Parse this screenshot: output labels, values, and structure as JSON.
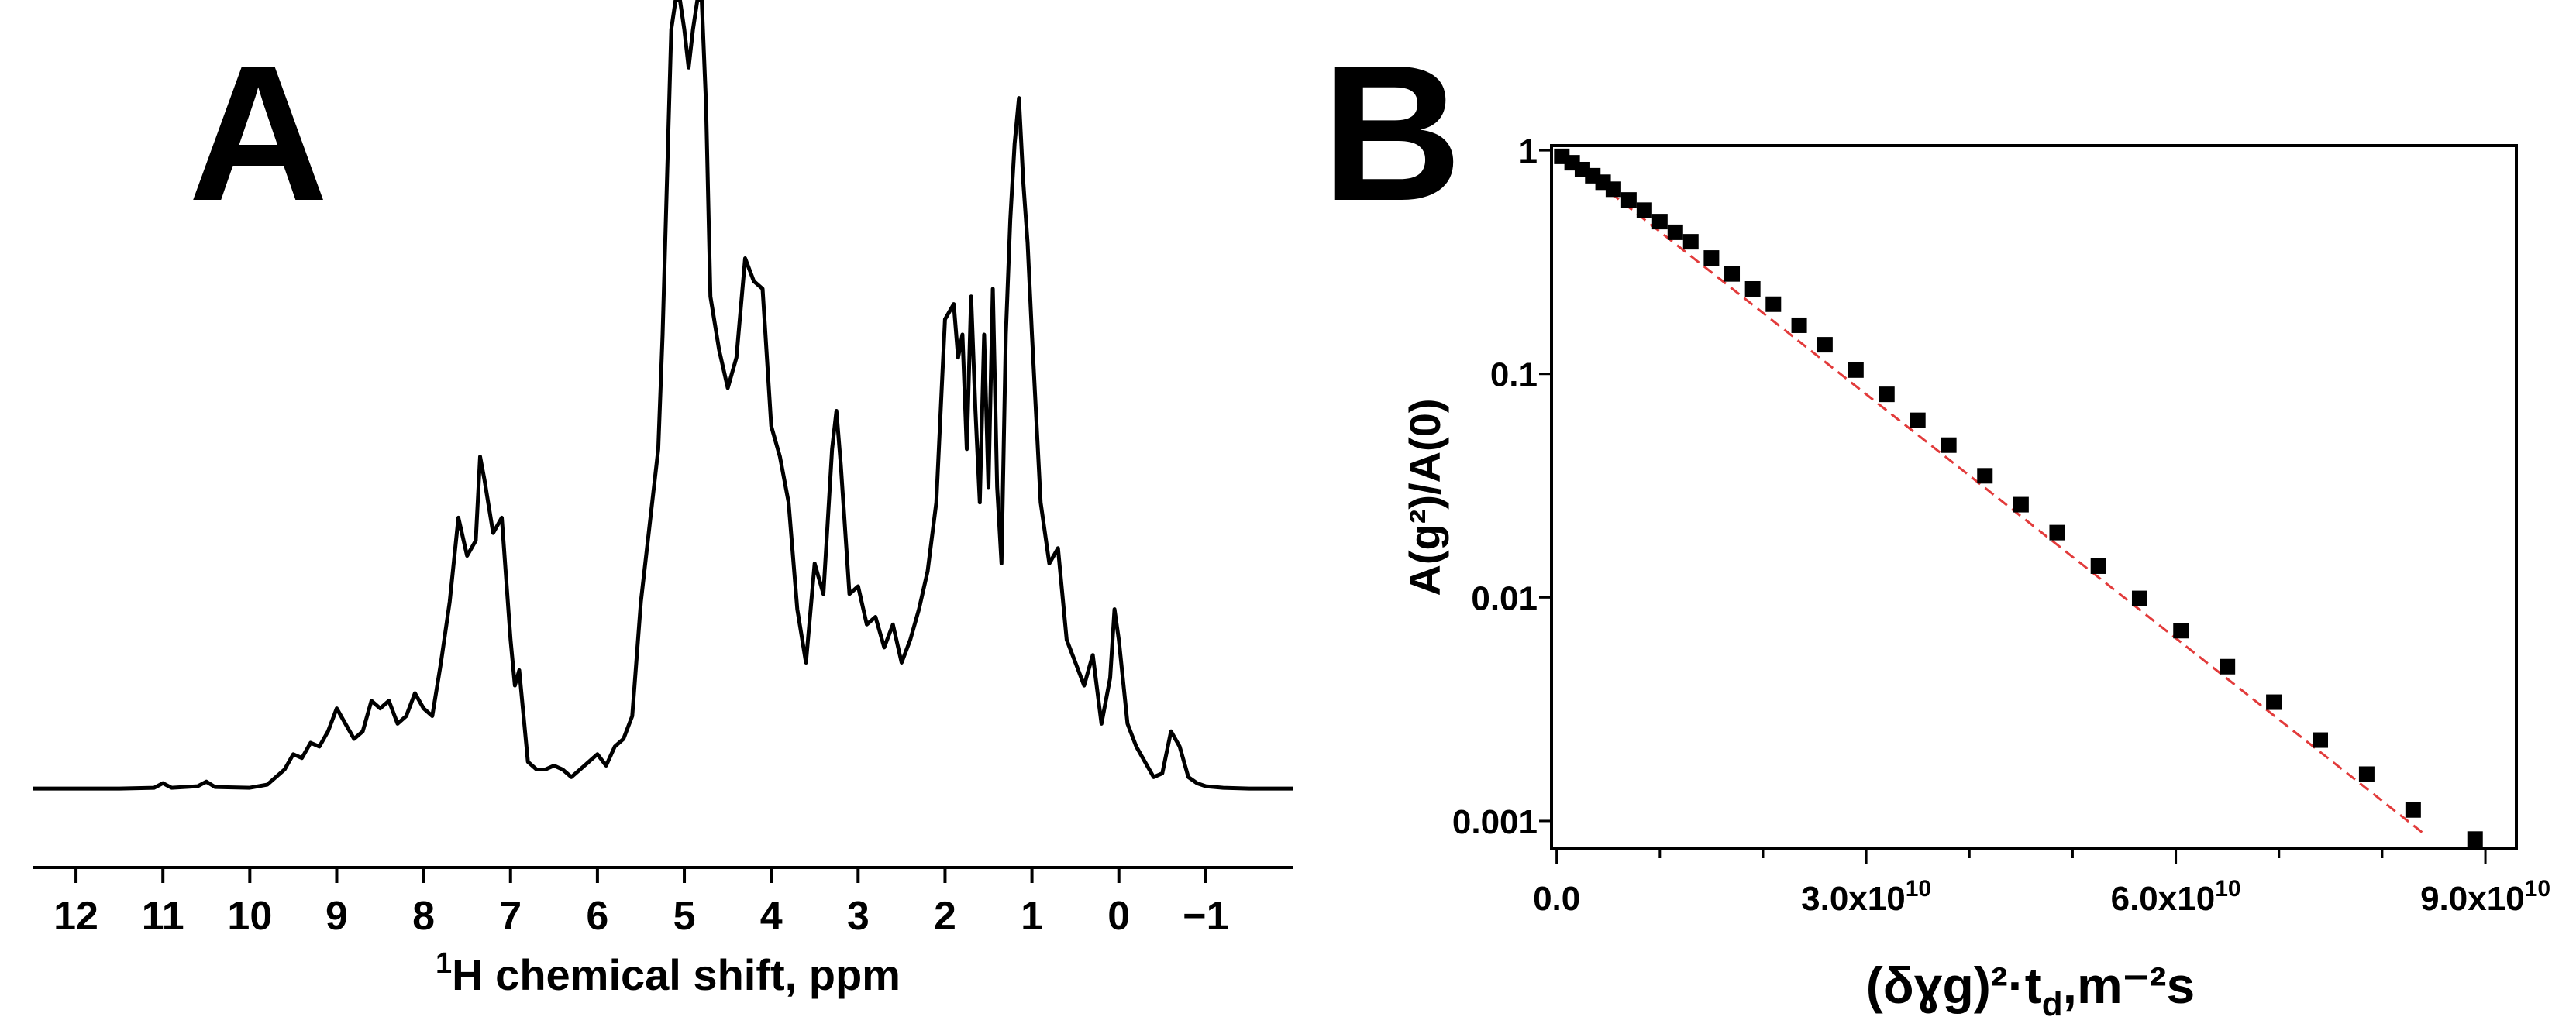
{
  "panels": {
    "A": {
      "letter": "A"
    },
    "B": {
      "letter": "B"
    }
  },
  "chart_data": [
    {
      "panel": "A",
      "type": "line",
      "xlabel_sup": "1",
      "xlabel": "H chemical shift, ppm",
      "xlim": [
        12.5,
        -2.0
      ],
      "x_reversed": true,
      "x_ticks": [
        12,
        11,
        10,
        9,
        8,
        7,
        6,
        5,
        4,
        3,
        2,
        1,
        0,
        -1
      ],
      "x_tick_labels": [
        "12",
        "11",
        "10",
        "9",
        "8",
        "7",
        "6",
        "5",
        "4",
        "3",
        "2",
        "1",
        "0",
        "−1"
      ],
      "ylim": [
        0,
        1.0
      ],
      "y_axis_visible": false,
      "series": [
        {
          "color": "#000000",
          "x": [
            12.5,
            11.5,
            11.1,
            11.0,
            10.9,
            10.6,
            10.5,
            10.4,
            10.0,
            9.8,
            9.6,
            9.5,
            9.4,
            9.3,
            9.2,
            9.1,
            9.0,
            8.9,
            8.8,
            8.7,
            8.6,
            8.5,
            8.4,
            8.3,
            8.2,
            8.1,
            8.0,
            7.9,
            7.8,
            7.7,
            7.6,
            7.5,
            7.4,
            7.35,
            7.3,
            7.2,
            7.1,
            7.0,
            6.95,
            6.9,
            6.8,
            6.7,
            6.6,
            6.5,
            6.4,
            6.3,
            6.2,
            6.1,
            6.0,
            5.9,
            5.8,
            5.7,
            5.6,
            5.5,
            5.4,
            5.3,
            5.25,
            5.2,
            5.15,
            5.1,
            5.05,
            5.0,
            4.95,
            4.9,
            4.85,
            4.8,
            4.75,
            4.7,
            4.6,
            4.5,
            4.4,
            4.3,
            4.2,
            4.1,
            4.0,
            3.9,
            3.8,
            3.7,
            3.6,
            3.5,
            3.4,
            3.3,
            3.25,
            3.2,
            3.1,
            3.0,
            2.9,
            2.8,
            2.7,
            2.6,
            2.5,
            2.4,
            2.3,
            2.2,
            2.1,
            2.0,
            1.9,
            1.85,
            1.8,
            1.75,
            1.7,
            1.65,
            1.6,
            1.55,
            1.5,
            1.45,
            1.4,
            1.35,
            1.3,
            1.25,
            1.2,
            1.15,
            1.1,
            1.05,
            1.0,
            0.9,
            0.8,
            0.7,
            0.6,
            0.5,
            0.4,
            0.3,
            0.2,
            0.1,
            0.05,
            0.0,
            -0.1,
            -0.2,
            -0.3,
            -0.4,
            -0.5,
            -0.6,
            -0.7,
            -0.8,
            -0.9,
            -1.0,
            -1.2,
            -1.5,
            -2.0
          ],
          "y": [
            0.005,
            0.005,
            0.006,
            0.012,
            0.006,
            0.008,
            0.014,
            0.007,
            0.006,
            0.01,
            0.03,
            0.05,
            0.045,
            0.065,
            0.06,
            0.08,
            0.11,
            0.09,
            0.07,
            0.08,
            0.12,
            0.11,
            0.12,
            0.09,
            0.1,
            0.13,
            0.11,
            0.1,
            0.17,
            0.25,
            0.36,
            0.31,
            0.33,
            0.44,
            0.41,
            0.34,
            0.36,
            0.2,
            0.14,
            0.16,
            0.04,
            0.03,
            0.03,
            0.035,
            0.03,
            0.02,
            0.03,
            0.04,
            0.05,
            0.035,
            0.06,
            0.07,
            0.1,
            0.25,
            0.35,
            0.45,
            0.6,
            0.8,
            1.0,
            1.2,
            1.1,
            1.0,
            0.95,
            1.0,
            1.1,
            1.2,
            0.9,
            0.65,
            0.58,
            0.53,
            0.57,
            0.7,
            0.67,
            0.66,
            0.48,
            0.44,
            0.38,
            0.24,
            0.17,
            0.3,
            0.26,
            0.45,
            0.5,
            0.43,
            0.26,
            0.27,
            0.22,
            0.23,
            0.19,
            0.22,
            0.17,
            0.2,
            0.24,
            0.29,
            0.38,
            0.62,
            0.64,
            0.57,
            0.6,
            0.45,
            0.65,
            0.5,
            0.38,
            0.6,
            0.4,
            0.66,
            0.4,
            0.3,
            0.6,
            0.75,
            0.85,
            0.91,
            0.8,
            0.72,
            0.6,
            0.38,
            0.3,
            0.32,
            0.2,
            0.17,
            0.14,
            0.18,
            0.09,
            0.15,
            0.24,
            0.2,
            0.09,
            0.06,
            0.04,
            0.02,
            0.025,
            0.08,
            0.06,
            0.02,
            0.012,
            0.008,
            0.006,
            0.005,
            0.005
          ]
        }
      ]
    },
    {
      "panel": "B",
      "type": "scatter",
      "xlabel": "(δɣg)²·t",
      "xlabel_sub": "d",
      "xlabel_suffix": ",m⁻²s",
      "ylabel": "A(g²)/A(0)",
      "xlim": [
        -500000000.0,
        93000000000.0
      ],
      "ylim": [
        0.00075,
        1.05
      ],
      "y_scale": "log",
      "x_ticks": [
        0,
        30000000000.0,
        60000000000.0,
        90000000000.0
      ],
      "x_tick_labels": [
        {
          "base": "0.0",
          "exp": ""
        },
        {
          "base": "3.0x10",
          "exp": "10"
        },
        {
          "base": "6.0x10",
          "exp": "10"
        },
        {
          "base": "9.0x10",
          "exp": "10"
        }
      ],
      "y_ticks": [
        1,
        0.1,
        0.01,
        0.001
      ],
      "y_tick_labels": [
        "1",
        "0.1",
        "0.01",
        "0.001"
      ],
      "series": [
        {
          "marker": "square",
          "color": "#000000",
          "x": [
            500000000.0,
            1500000000.0,
            2500000000.0,
            3500000000.0,
            4500000000.0,
            5500000000.0,
            7000000000.0,
            8500000000.0,
            10000000000.0,
            11500000000.0,
            13000000000.0,
            15000000000.0,
            17000000000.0,
            19000000000.0,
            21000000000.0,
            23500000000.0,
            26000000000.0,
            29000000000.0,
            32000000000.0,
            35000000000.0,
            38000000000.0,
            41500000000.0,
            45000000000.0,
            48500000000.0,
            52500000000.0,
            56500000000.0,
            60500000000.0,
            65000000000.0,
            69500000000.0,
            74000000000.0,
            78500000000.0,
            83000000000.0,
            89000000000.0
          ],
          "y": [
            0.94,
            0.88,
            0.82,
            0.77,
            0.72,
            0.67,
            0.6,
            0.54,
            0.48,
            0.43,
            0.39,
            0.33,
            0.28,
            0.24,
            0.205,
            0.165,
            0.135,
            0.104,
            0.081,
            0.062,
            0.048,
            0.035,
            0.026,
            0.0195,
            0.0138,
            0.0099,
            0.0071,
            0.0049,
            0.0034,
            0.0023,
            0.00162,
            0.00112,
            0.00083
          ]
        }
      ],
      "fit_line": {
        "style": "dashed",
        "color": "#e23b3b",
        "x": [
          0,
          84000000000.0
        ],
        "y": [
          1.0,
          0.00088
        ]
      }
    }
  ]
}
